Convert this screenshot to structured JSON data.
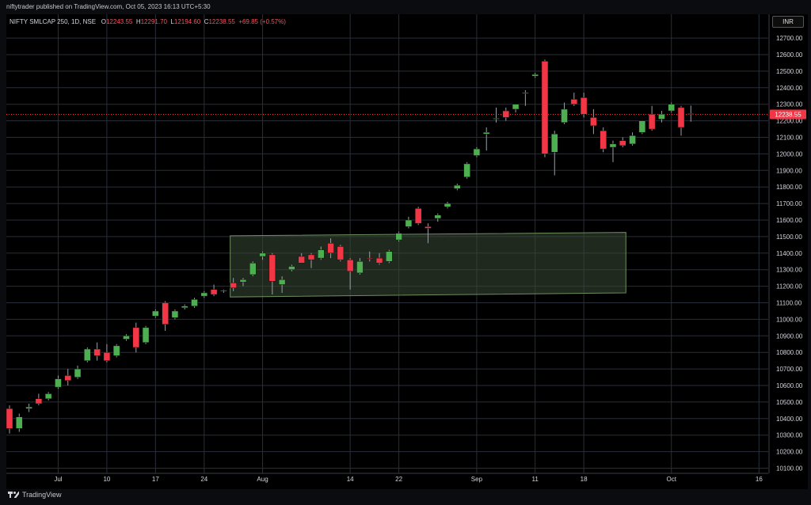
{
  "header": {
    "publisher": "niftytrader published on TradingView.com, Oct 05, 2023 16:13 UTC+5:30"
  },
  "legend": {
    "symbol": "NIFTY SMLCAP 250, 1D, NSE",
    "open_label": "O",
    "open": "12243.55",
    "high_label": "H",
    "high": "12291.70",
    "low_label": "L",
    "low": "12194.60",
    "close_label": "C",
    "close": "12238.55",
    "change": "+69.85 (+0.57%)"
  },
  "currency": "INR",
  "footer": {
    "brand": "TradingView"
  },
  "colors": {
    "up": "#4caf50",
    "down": "#f23645",
    "grid": "#2a2e39",
    "zone_fill": "#3b4a36",
    "zone_stroke": "#6b8f60",
    "last_price_bg": "#f23645"
  },
  "chart_data": {
    "type": "candlestick",
    "ylim": [
      10100,
      12800
    ],
    "y_ticks": [
      "12700.00",
      "12600.00",
      "12500.00",
      "12400.00",
      "12300.00",
      "12200.00",
      "12100.00",
      "12000.00",
      "11900.00",
      "11800.00",
      "11700.00",
      "11600.00",
      "11500.00",
      "11400.00",
      "11300.00",
      "11200.00",
      "11100.00",
      "11000.00",
      "10900.00",
      "10800.00",
      "10700.00",
      "10600.00",
      "10500.00",
      "10400.00",
      "10300.00",
      "10200.00",
      "10100.00"
    ],
    "x_ticks": [
      {
        "label": "Jul",
        "bar": 5
      },
      {
        "label": "10",
        "bar": 10
      },
      {
        "label": "17",
        "bar": 15
      },
      {
        "label": "24",
        "bar": 20
      },
      {
        "label": "Aug",
        "bar": 26
      },
      {
        "label": "14",
        "bar": 35
      },
      {
        "label": "22",
        "bar": 40
      },
      {
        "label": "Sep",
        "bar": 48
      },
      {
        "label": "11",
        "bar": 54
      },
      {
        "label": "18",
        "bar": 59
      },
      {
        "label": "Oct",
        "bar": 68
      },
      {
        "label": "16",
        "bar": 77
      }
    ],
    "last_price": "12238.55",
    "zone": {
      "start_bar": 23,
      "end_bar": 63,
      "top_start": 11505,
      "top_end": 11525,
      "bottom_start": 11135,
      "bottom_end": 11160
    },
    "candles": [
      {
        "o": 10460,
        "h": 10480,
        "l": 10310,
        "c": 10340
      },
      {
        "o": 10340,
        "h": 10430,
        "l": 10320,
        "c": 10410
      },
      {
        "o": 10460,
        "h": 10490,
        "l": 10440,
        "c": 10470
      },
      {
        "o": 10520,
        "h": 10550,
        "l": 10480,
        "c": 10490
      },
      {
        "o": 10520,
        "h": 10560,
        "l": 10510,
        "c": 10550
      },
      {
        "o": 10590,
        "h": 10660,
        "l": 10580,
        "c": 10640
      },
      {
        "o": 10660,
        "h": 10700,
        "l": 10600,
        "c": 10630
      },
      {
        "o": 10650,
        "h": 10720,
        "l": 10640,
        "c": 10700
      },
      {
        "o": 10750,
        "h": 10830,
        "l": 10740,
        "c": 10820
      },
      {
        "o": 10820,
        "h": 10860,
        "l": 10750,
        "c": 10780
      },
      {
        "o": 10800,
        "h": 10850,
        "l": 10740,
        "c": 10750
      },
      {
        "o": 10780,
        "h": 10850,
        "l": 10770,
        "c": 10840
      },
      {
        "o": 10880,
        "h": 10910,
        "l": 10870,
        "c": 10900
      },
      {
        "o": 10950,
        "h": 10980,
        "l": 10800,
        "c": 10830
      },
      {
        "o": 10860,
        "h": 10960,
        "l": 10850,
        "c": 10950
      },
      {
        "o": 11020,
        "h": 11060,
        "l": 11010,
        "c": 11050
      },
      {
        "o": 11100,
        "h": 11110,
        "l": 10930,
        "c": 10970
      },
      {
        "o": 11010,
        "h": 11060,
        "l": 11000,
        "c": 11050
      },
      {
        "o": 11070,
        "h": 11090,
        "l": 11060,
        "c": 11080
      },
      {
        "o": 11080,
        "h": 11130,
        "l": 11070,
        "c": 11120
      },
      {
        "o": 11140,
        "h": 11170,
        "l": 11130,
        "c": 11160
      },
      {
        "o": 11180,
        "h": 11210,
        "l": 11140,
        "c": 11150
      },
      {
        "o": 11170,
        "h": 11180,
        "l": 11160,
        "c": 11175
      },
      {
        "o": 11220,
        "h": 11250,
        "l": 11170,
        "c": 11190
      },
      {
        "o": 11225,
        "h": 11250,
        "l": 11200,
        "c": 11240
      },
      {
        "o": 11270,
        "h": 11350,
        "l": 11260,
        "c": 11340
      },
      {
        "o": 11380,
        "h": 11410,
        "l": 11360,
        "c": 11400
      },
      {
        "o": 11390,
        "h": 11400,
        "l": 11150,
        "c": 11230
      },
      {
        "o": 11210,
        "h": 11260,
        "l": 11160,
        "c": 11240
      },
      {
        "o": 11300,
        "h": 11330,
        "l": 11290,
        "c": 11320
      },
      {
        "o": 11380,
        "h": 11400,
        "l": 11340,
        "c": 11340
      },
      {
        "o": 11390,
        "h": 11400,
        "l": 11310,
        "c": 11360
      },
      {
        "o": 11370,
        "h": 11440,
        "l": 11360,
        "c": 11420
      },
      {
        "o": 11460,
        "h": 11490,
        "l": 11370,
        "c": 11400
      },
      {
        "o": 11440,
        "h": 11450,
        "l": 11350,
        "c": 11360
      },
      {
        "o": 11360,
        "h": 11370,
        "l": 11180,
        "c": 11290
      },
      {
        "o": 11280,
        "h": 11370,
        "l": 11270,
        "c": 11350
      },
      {
        "o": 11370,
        "h": 11410,
        "l": 11350,
        "c": 11365
      },
      {
        "o": 11370,
        "h": 11400,
        "l": 11330,
        "c": 11340
      },
      {
        "o": 11350,
        "h": 11420,
        "l": 11340,
        "c": 11410
      },
      {
        "o": 11480,
        "h": 11530,
        "l": 11470,
        "c": 11520
      },
      {
        "o": 11560,
        "h": 11620,
        "l": 11550,
        "c": 11600
      },
      {
        "o": 11670,
        "h": 11680,
        "l": 11570,
        "c": 11580
      },
      {
        "o": 11560,
        "h": 11580,
        "l": 11460,
        "c": 11550
      },
      {
        "o": 11610,
        "h": 11640,
        "l": 11590,
        "c": 11630
      },
      {
        "o": 11680,
        "h": 11710,
        "l": 11670,
        "c": 11700
      },
      {
        "o": 11790,
        "h": 11820,
        "l": 11780,
        "c": 11810
      },
      {
        "o": 11860,
        "h": 11950,
        "l": 11850,
        "c": 11940
      },
      {
        "o": 11990,
        "h": 12040,
        "l": 11980,
        "c": 12030
      },
      {
        "o": 12120,
        "h": 12160,
        "l": 12020,
        "c": 12130
      },
      {
        "o": 12210,
        "h": 12280,
        "l": 12190,
        "c": 12215
      },
      {
        "o": 12260,
        "h": 12280,
        "l": 12200,
        "c": 12220
      },
      {
        "o": 12270,
        "h": 12300,
        "l": 12250,
        "c": 12300
      },
      {
        "o": 12365,
        "h": 12385,
        "l": 12290,
        "c": 12370
      },
      {
        "o": 12470,
        "h": 12490,
        "l": 12460,
        "c": 12480
      },
      {
        "o": 12560,
        "h": 12570,
        "l": 11980,
        "c": 12000
      },
      {
        "o": 12010,
        "h": 12140,
        "l": 11870,
        "c": 12120
      },
      {
        "o": 12190,
        "h": 12310,
        "l": 12180,
        "c": 12270
      },
      {
        "o": 12330,
        "h": 12370,
        "l": 12290,
        "c": 12300
      },
      {
        "o": 12340,
        "h": 12370,
        "l": 12220,
        "c": 12240
      },
      {
        "o": 12220,
        "h": 12270,
        "l": 12120,
        "c": 12170
      },
      {
        "o": 12140,
        "h": 12160,
        "l": 12010,
        "c": 12030
      },
      {
        "o": 12040,
        "h": 12080,
        "l": 11950,
        "c": 12060
      },
      {
        "o": 12080,
        "h": 12100,
        "l": 12040,
        "c": 12050
      },
      {
        "o": 12060,
        "h": 12130,
        "l": 12050,
        "c": 12110
      },
      {
        "o": 12130,
        "h": 12200,
        "l": 12120,
        "c": 12200
      },
      {
        "o": 12240,
        "h": 12290,
        "l": 12140,
        "c": 12150
      },
      {
        "o": 12210,
        "h": 12260,
        "l": 12190,
        "c": 12240
      },
      {
        "o": 12260,
        "h": 12310,
        "l": 12250,
        "c": 12300
      },
      {
        "o": 12280,
        "h": 12290,
        "l": 12110,
        "c": 12160
      },
      {
        "o": 12243.55,
        "h": 12291.7,
        "l": 12194.6,
        "c": 12238.55
      }
    ]
  }
}
